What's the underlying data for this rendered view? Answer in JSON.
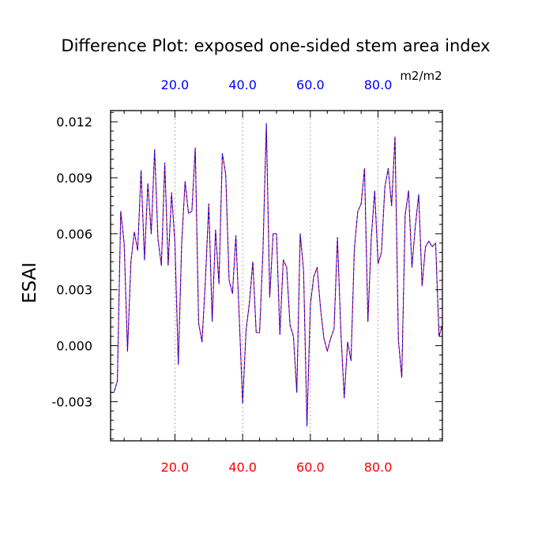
{
  "chart_data": {
    "type": "line",
    "title": "Difference Plot: exposed one-sided stem area index",
    "ylabel": "ESAI",
    "units_label": "m2/m2",
    "xlim": [
      1,
      99
    ],
    "ylim": [
      -0.0051,
      0.0126
    ],
    "x_ticks": [
      20,
      40,
      60,
      80
    ],
    "x_tick_labels": [
      "20.0",
      "40.0",
      "60.0",
      "80.0"
    ],
    "y_ticks": [
      -0.003,
      0.0,
      0.003,
      0.006,
      0.009,
      0.012
    ],
    "y_tick_labels": [
      "-0.003",
      "0.000",
      "0.003",
      "0.006",
      "0.009",
      "0.012"
    ],
    "grid_x": true,
    "grid_y": false,
    "colors": {
      "bottom_tick_labels": "#ff0000",
      "top_tick_labels": "#0000ff",
      "series_red": "#ff0000",
      "series_blue": "#0000ff"
    },
    "series": [
      {
        "color": "#ff0000",
        "dash": "solid",
        "x": [
          1,
          2,
          3,
          4,
          5,
          6,
          7,
          8,
          9,
          10,
          11,
          12,
          13,
          14,
          15,
          16,
          17,
          18,
          19,
          20,
          21,
          22,
          23,
          24,
          25,
          26,
          27,
          28,
          29,
          30,
          31,
          32,
          33,
          34,
          35,
          36,
          37,
          38,
          39,
          40,
          41,
          42,
          43,
          44,
          45,
          46,
          47,
          48,
          49,
          50,
          51,
          52,
          53,
          54,
          55,
          56,
          57,
          58,
          59,
          60,
          61,
          62,
          63,
          64,
          65,
          66,
          67,
          68,
          69,
          70,
          71,
          72,
          73,
          74,
          75,
          76,
          77,
          78,
          79,
          80,
          81,
          82,
          83,
          84,
          85,
          86,
          87,
          88,
          89,
          90,
          91,
          92,
          93,
          94,
          95,
          96,
          97,
          98,
          99
        ],
        "y": [
          -0.0025,
          -0.0025,
          -0.0019,
          0.0072,
          0.0055,
          -0.0003,
          0.0045,
          0.0061,
          0.0051,
          0.0094,
          0.0046,
          0.0087,
          0.006,
          0.0105,
          0.0057,
          0.0043,
          0.0098,
          0.0043,
          0.0082,
          0.0055,
          -0.001,
          0.0055,
          0.0088,
          0.0071,
          0.0072,
          0.0106,
          0.0012,
          0.0002,
          0.0035,
          0.0076,
          0.0013,
          0.0062,
          0.0033,
          0.0103,
          0.0092,
          0.0035,
          0.0028,
          0.0059,
          0.0015,
          -0.0031,
          0.0008,
          0.0023,
          0.0045,
          0.0007,
          0.0007,
          0.0051,
          0.0119,
          0.0026,
          0.006,
          0.006,
          0.0006,
          0.0046,
          0.0042,
          0.0011,
          0.0005,
          -0.0025,
          0.006,
          0.004,
          -0.0043,
          0.0022,
          0.0037,
          0.0042,
          0.002,
          0.0004,
          -0.0003,
          0.0004,
          0.0009,
          0.0058,
          0.0008,
          -0.0028,
          0.0002,
          -0.0008,
          0.0052,
          0.0072,
          0.0076,
          0.0095,
          0.0013,
          0.0058,
          0.0083,
          0.0044,
          0.005,
          0.0085,
          0.0095,
          0.0075,
          0.0112,
          0.0003,
          -0.0017,
          0.007,
          0.0083,
          0.0042,
          0.0064,
          0.0081,
          0.0032,
          0.0053,
          0.0056,
          0.0053,
          0.0055,
          0.0005,
          0.0011
        ]
      },
      {
        "color": "#0000ff",
        "dash": "dashed",
        "x": [
          1,
          2,
          3,
          4,
          5,
          6,
          7,
          8,
          9,
          10,
          11,
          12,
          13,
          14,
          15,
          16,
          17,
          18,
          19,
          20,
          21,
          22,
          23,
          24,
          25,
          26,
          27,
          28,
          29,
          30,
          31,
          32,
          33,
          34,
          35,
          36,
          37,
          38,
          39,
          40,
          41,
          42,
          43,
          44,
          45,
          46,
          47,
          48,
          49,
          50,
          51,
          52,
          53,
          54,
          55,
          56,
          57,
          58,
          59,
          60,
          61,
          62,
          63,
          64,
          65,
          66,
          67,
          68,
          69,
          70,
          71,
          72,
          73,
          74,
          75,
          76,
          77,
          78,
          79,
          80,
          81,
          82,
          83,
          84,
          85,
          86,
          87,
          88,
          89,
          90,
          91,
          92,
          93,
          94,
          95,
          96,
          97,
          98,
          99
        ],
        "y": [
          -0.0025,
          -0.0025,
          -0.0019,
          0.0072,
          0.0055,
          -0.0003,
          0.0045,
          0.0061,
          0.0051,
          0.0094,
          0.0046,
          0.0087,
          0.006,
          0.0105,
          0.0057,
          0.0043,
          0.0098,
          0.0043,
          0.0082,
          0.0055,
          -0.001,
          0.0055,
          0.0088,
          0.0071,
          0.0072,
          0.0106,
          0.0012,
          0.0002,
          0.0035,
          0.0076,
          0.0013,
          0.0062,
          0.0033,
          0.0103,
          0.0092,
          0.0035,
          0.0028,
          0.0059,
          0.0015,
          -0.0031,
          0.0008,
          0.0023,
          0.0045,
          0.0007,
          0.0007,
          0.0051,
          0.0119,
          0.0026,
          0.006,
          0.006,
          0.0006,
          0.0046,
          0.0042,
          0.0011,
          0.0005,
          -0.0025,
          0.006,
          0.004,
          -0.0043,
          0.0022,
          0.0037,
          0.0042,
          0.002,
          0.0004,
          -0.0003,
          0.0004,
          0.0009,
          0.0058,
          0.0008,
          -0.0028,
          0.0002,
          -0.0008,
          0.0052,
          0.0072,
          0.0076,
          0.0095,
          0.0013,
          0.0058,
          0.0083,
          0.0044,
          0.005,
          0.0085,
          0.0095,
          0.0075,
          0.0112,
          0.0003,
          -0.0017,
          0.007,
          0.0083,
          0.0042,
          0.0064,
          0.0081,
          0.0032,
          0.0053,
          0.0056,
          0.0053,
          0.0055,
          0.0005,
          0.0011
        ]
      }
    ]
  }
}
